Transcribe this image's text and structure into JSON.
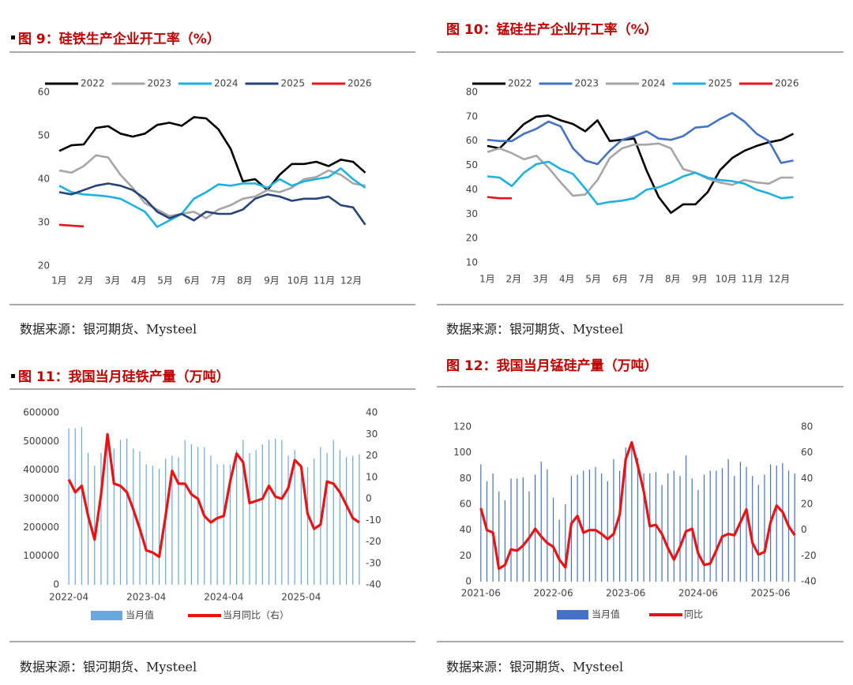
{
  "headings": [
    "图 9：硅铁生产企业开工率（%）",
    "图 10：锰硅生产企业开工率（%）",
    "图 11：我国当月硅铁产量（万吨）",
    "图 12：我国当月锰硅产量（万吨）"
  ],
  "sources": [
    "数据来源：银河期货、Mysteel",
    "数据来源：银河期货、Mysteel",
    "数据来源：银河期货、Mysteel",
    "数据来源：银河期货、Mysteel"
  ],
  "chart_data": [
    {
      "type": "line",
      "xlim": [
        0,
        52
      ],
      "ylim": [
        20,
        60
      ],
      "yticks": [
        20,
        30,
        40,
        50,
        60
      ],
      "xticks": [
        {
          "value": 0,
          "label": "1月"
        },
        {
          "value": 4.3,
          "label": "2月"
        },
        {
          "value": 8.7,
          "label": "3月"
        },
        {
          "value": 13,
          "label": "4月"
        },
        {
          "value": 17.3,
          "label": "5月"
        },
        {
          "value": 21.7,
          "label": "6月"
        },
        {
          "value": 26,
          "label": "7月"
        },
        {
          "value": 30.3,
          "label": "8月"
        },
        {
          "value": 34.7,
          "label": "9月"
        },
        {
          "value": 39,
          "label": "10月"
        },
        {
          "value": 43.3,
          "label": "11月"
        },
        {
          "value": 47.7,
          "label": "12月"
        }
      ],
      "x": [
        0,
        2,
        4,
        6,
        8,
        10,
        12,
        14,
        16,
        18,
        20,
        22,
        24,
        26,
        28,
        30,
        32,
        34,
        36,
        38,
        40,
        42,
        44,
        46,
        48,
        50
      ],
      "series": [
        {
          "name": "2022",
          "color": "#000000",
          "values": [
            46.5,
            47.8,
            48,
            51.8,
            52.2,
            50.5,
            49.8,
            50.5,
            52.5,
            53,
            52.3,
            54.3,
            54,
            51.5,
            47,
            39.5,
            40,
            37.5,
            41,
            43.5,
            43.5,
            44,
            43,
            44.5,
            44,
            41.5
          ]
        },
        {
          "name": "2023",
          "color": "#a6a6a6",
          "values": [
            42,
            41.5,
            43,
            45.5,
            45,
            41,
            38,
            34.5,
            33,
            31.5,
            32,
            32.5,
            31,
            33,
            34,
            35.5,
            36,
            37.5,
            37,
            38,
            40,
            40.5,
            42,
            41,
            39,
            38.5
          ]
        },
        {
          "name": "2024",
          "color": "#1cb1e0",
          "values": [
            38.5,
            37,
            36.5,
            36.3,
            36,
            35.5,
            34,
            32.5,
            29,
            30.5,
            32,
            35.5,
            37,
            38.8,
            38.5,
            39,
            39,
            38,
            40,
            38.5,
            39.5,
            40,
            40.5,
            42.5,
            40,
            38
          ]
        },
        {
          "name": "2025",
          "color": "#264478",
          "values": [
            37,
            36.5,
            37.5,
            38.5,
            39,
            38.5,
            37.5,
            35.5,
            32.5,
            31,
            32,
            30.5,
            32.5,
            32,
            32,
            33,
            35.5,
            36.5,
            36,
            35,
            35.5,
            35.5,
            36,
            34,
            33.5,
            29.5
          ]
        },
        {
          "name": "2026",
          "color": "#e8141b",
          "values": [
            29.5,
            29.3,
            29.1,
            null,
            null,
            null,
            null,
            null,
            null,
            null,
            null,
            null,
            null,
            null,
            null,
            null,
            null,
            null,
            null,
            null,
            null,
            null,
            null,
            null,
            null,
            null
          ]
        }
      ]
    },
    {
      "type": "line",
      "xlim": [
        0,
        52
      ],
      "ylim": [
        10,
        80
      ],
      "yticks": [
        10,
        20,
        30,
        40,
        50,
        60,
        70,
        80
      ],
      "xticks": [
        {
          "value": 0,
          "label": "1月"
        },
        {
          "value": 4.3,
          "label": "2月"
        },
        {
          "value": 8.7,
          "label": "3月"
        },
        {
          "value": 13,
          "label": "4月"
        },
        {
          "value": 17.3,
          "label": "5月"
        },
        {
          "value": 21.7,
          "label": "6月"
        },
        {
          "value": 26,
          "label": "7月"
        },
        {
          "value": 30.3,
          "label": "8月"
        },
        {
          "value": 34.7,
          "label": "9月"
        },
        {
          "value": 39,
          "label": "10月"
        },
        {
          "value": 43.3,
          "label": "11月"
        },
        {
          "value": 47.7,
          "label": "12月"
        }
      ],
      "x": [
        0,
        2,
        4,
        6,
        8,
        10,
        12,
        14,
        16,
        18,
        20,
        22,
        24,
        26,
        28,
        30,
        32,
        34,
        36,
        38,
        40,
        42,
        44,
        46,
        48,
        50
      ],
      "series": [
        {
          "name": "2022",
          "color": "#000000",
          "values": [
            58,
            57,
            62,
            67,
            70,
            70.5,
            68.5,
            67,
            64,
            68.5,
            60,
            60.5,
            61,
            48,
            37,
            30.5,
            34,
            34,
            39,
            48,
            53,
            56,
            58,
            59.5,
            60.5,
            63
          ]
        },
        {
          "name": "2023",
          "color": "#4472c4",
          "values": [
            60.5,
            60,
            60,
            63,
            65,
            68,
            66,
            57,
            52,
            50.5,
            56,
            60.5,
            62,
            64,
            61,
            60.5,
            62,
            65.5,
            66,
            69,
            71.5,
            68,
            63,
            60,
            51,
            52
          ]
        },
        {
          "name": "2024",
          "color": "#a6a6a6",
          "values": [
            55.5,
            57,
            55,
            52.5,
            54,
            49,
            43,
            37.5,
            38,
            44,
            53,
            57,
            58.5,
            58.5,
            59,
            57,
            48.5,
            47,
            44.5,
            43,
            42,
            44,
            43,
            42.5,
            45,
            45
          ]
        },
        {
          "name": "2025",
          "color": "#1cb1e0",
          "values": [
            45.5,
            45,
            41.5,
            47,
            50.5,
            51.5,
            48.5,
            46.5,
            40.5,
            34,
            35,
            35.5,
            36.5,
            40,
            41,
            43,
            45.5,
            47,
            45,
            44,
            43.5,
            42.5,
            40,
            38.5,
            36.5,
            37
          ]
        },
        {
          "name": "2026",
          "color": "#e8141b",
          "values": [
            37,
            36.5,
            36.5,
            null,
            null,
            null,
            null,
            null,
            null,
            null,
            null,
            null,
            null,
            null,
            null,
            null,
            null,
            null,
            null,
            null,
            null,
            null,
            null,
            null,
            null,
            null
          ]
        }
      ]
    },
    {
      "type": "bar_line",
      "ylim": [
        0,
        600000
      ],
      "yticks": [
        0,
        100000,
        200000,
        300000,
        400000,
        500000,
        600000
      ],
      "y2lim": [
        -40,
        40
      ],
      "y2ticks": [
        -40,
        -30,
        -20,
        -10,
        0,
        10,
        20,
        30,
        40
      ],
      "categories": [
        "2022-04",
        null,
        null,
        null,
        null,
        null,
        null,
        null,
        null,
        null,
        null,
        null,
        "2023-04",
        null,
        null,
        null,
        null,
        null,
        null,
        null,
        null,
        null,
        null,
        null,
        "2024-04",
        null,
        null,
        null,
        null,
        null,
        null,
        null,
        null,
        null,
        null,
        null,
        "2025-04",
        null,
        null,
        null,
        null,
        null,
        null,
        null,
        null,
        null
      ],
      "series": [
        {
          "name": "当月值",
          "color": "#6aa7dc",
          "values": [
            545000,
            545000,
            550000,
            460000,
            415000,
            460000,
            530000,
            475000,
            505000,
            510000,
            475000,
            465000,
            420000,
            415000,
            405000,
            440000,
            450000,
            445000,
            505000,
            490000,
            480000,
            480000,
            450000,
            420000,
            420000,
            420000,
            470000,
            505000,
            460000,
            470000,
            490000,
            505000,
            510000,
            505000,
            450000,
            470000,
            415000,
            410000,
            440000,
            480000,
            460000,
            505000,
            470000,
            445000,
            450000,
            455000
          ]
        },
        {
          "name": "当月同比（右）",
          "color": "#ee1111",
          "axis": "y2",
          "values": [
            9,
            3,
            6,
            -8,
            -19,
            2,
            30,
            7,
            6,
            3,
            -5,
            -14,
            -24,
            -25,
            -27,
            -8,
            13,
            7,
            7,
            2,
            0,
            -8,
            -11,
            -9,
            -8,
            8,
            21,
            17,
            -2,
            -1,
            0,
            6,
            1,
            0,
            5,
            18,
            15,
            -7,
            -14,
            -12,
            8,
            7,
            3,
            -3,
            -9,
            -11
          ]
        }
      ]
    },
    {
      "type": "bar_line",
      "ylim": [
        0,
        120
      ],
      "yticks": [
        0,
        20,
        40,
        60,
        80,
        100,
        120
      ],
      "y2lim": [
        -40,
        80
      ],
      "y2ticks": [
        -40,
        -20,
        0,
        20,
        40,
        60,
        80
      ],
      "categories": [
        "2021-06",
        null,
        null,
        null,
        null,
        null,
        null,
        null,
        null,
        null,
        null,
        null,
        "2022-06",
        null,
        null,
        null,
        null,
        null,
        null,
        null,
        null,
        null,
        null,
        null,
        "2023-06",
        null,
        null,
        null,
        null,
        null,
        null,
        null,
        null,
        null,
        null,
        null,
        "2024-06",
        null,
        null,
        null,
        null,
        null,
        null,
        null,
        null,
        null,
        null,
        null,
        "2025-06",
        null,
        null,
        null,
        null
      ],
      "series": [
        {
          "name": "当月值",
          "color": "#4472c4",
          "values": [
            91,
            78,
            84,
            70,
            63,
            80,
            80,
            81,
            70,
            83,
            93,
            87,
            65,
            48,
            60,
            82,
            83,
            86,
            87,
            89,
            84,
            78,
            95,
            86,
            104,
            108,
            96,
            84,
            84,
            85,
            75,
            84,
            86,
            82,
            98,
            80,
            71,
            83,
            86,
            86,
            88,
            95,
            82,
            93,
            89,
            82,
            75,
            83,
            91,
            90,
            92,
            86,
            84
          ]
        },
        {
          "name": "同比",
          "color": "#ee1111",
          "axis": "y2",
          "values": [
            17,
            0,
            -2,
            -30,
            -27,
            -15,
            -16,
            -12,
            -6,
            1,
            -5,
            -10,
            -13,
            -23,
            -29,
            5,
            11,
            -2,
            0,
            0,
            -3,
            -7,
            -3,
            12,
            55,
            68,
            50,
            30,
            3,
            4,
            -3,
            -14,
            -23,
            -13,
            -1,
            1,
            -18,
            -27,
            -26,
            -16,
            -5,
            -3,
            -4,
            6,
            16,
            -10,
            -19,
            -17,
            6,
            19,
            14,
            3,
            -4
          ]
        }
      ]
    }
  ]
}
